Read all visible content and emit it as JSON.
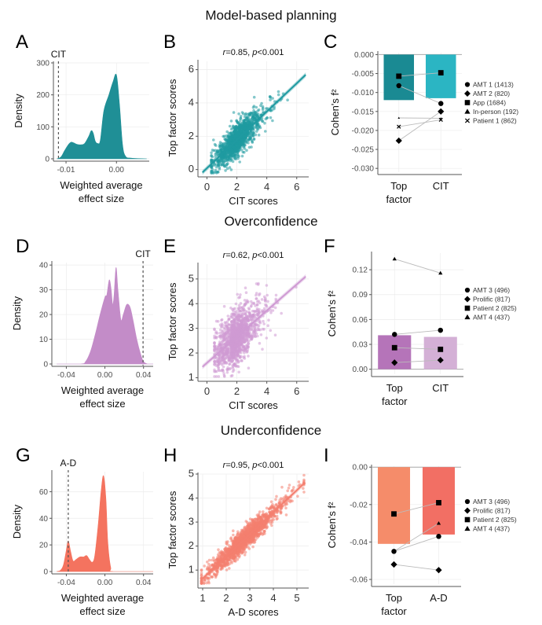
{
  "sections": [
    {
      "title": "Model-based planning"
    },
    {
      "title": "Overconfidence"
    },
    {
      "title": "Underconfidence"
    }
  ],
  "panel_letters": [
    "A",
    "B",
    "C",
    "D",
    "E",
    "F",
    "G",
    "H",
    "I"
  ],
  "chart_data": [
    {
      "id": "A",
      "type": "area",
      "title": "",
      "xlabel": "Weighted average effect size",
      "xlabel_lines": [
        "Weighted average",
        "effect size"
      ],
      "ylabel": "Density",
      "xlim": [
        -0.0125,
        0.0065
      ],
      "ylim": [
        0,
        300
      ],
      "xticks": [
        -0.01,
        0.0
      ],
      "xtick_labels": [
        "-0.01",
        "0.00"
      ],
      "yticks": [
        0,
        100,
        200,
        300
      ],
      "ytick_labels": [
        "0",
        "100",
        "200",
        "300"
      ],
      "fill": "#1f8f96",
      "density": [
        [
          -0.0118,
          0
        ],
        [
          -0.011,
          6
        ],
        [
          -0.0103,
          25
        ],
        [
          -0.0095,
          45
        ],
        [
          -0.009,
          52
        ],
        [
          -0.0085,
          50
        ],
        [
          -0.0078,
          45
        ],
        [
          -0.007,
          44
        ],
        [
          -0.0063,
          48
        ],
        [
          -0.0055,
          70
        ],
        [
          -0.005,
          88
        ],
        [
          -0.0046,
          80
        ],
        [
          -0.0042,
          55
        ],
        [
          -0.0037,
          48
        ],
        [
          -0.0032,
          58
        ],
        [
          -0.0025,
          150
        ],
        [
          -0.0015,
          200
        ],
        [
          -0.0007,
          240
        ],
        [
          0.0,
          262
        ],
        [
          0.0006,
          170
        ],
        [
          0.0012,
          45
        ],
        [
          0.0018,
          8
        ],
        [
          0.003,
          2
        ],
        [
          0.006,
          0
        ]
      ],
      "ref_line": {
        "x": -0.0115,
        "label": "CIT"
      },
      "grid": true
    },
    {
      "id": "B",
      "type": "scatter",
      "title": "r=0.85, p<0.001",
      "title_italic": [
        "r",
        "p"
      ],
      "xlabel": "CIT scores",
      "ylabel": "Top factor scores",
      "xlim": [
        -0.6,
        6.8
      ],
      "ylim": [
        -0.3,
        6.5
      ],
      "xticks": [
        0,
        2,
        4,
        6
      ],
      "yticks": [
        0,
        2,
        4,
        6
      ],
      "color": "#1f9aa1",
      "fit": {
        "slope": 0.85,
        "intercept": 0.08,
        "x0": -0.3,
        "x1": 6.6
      },
      "cloud": {
        "n": 1400,
        "xmean": 1.6,
        "xsd": 0.85,
        "xmin": 0.3,
        "xmax": 6.2,
        "resid_sd": 0.45,
        "seed": 11
      },
      "grid": true
    },
    {
      "id": "C",
      "type": "bar",
      "title": "",
      "xlabel": "",
      "ylabel": "Cohen's f²",
      "categories": [
        "Top factor",
        "CIT"
      ],
      "category_labels": [
        [
          "Top",
          "factor"
        ],
        [
          "CIT"
        ]
      ],
      "values": [
        -0.012,
        -0.0115
      ],
      "bar_colors": [
        "#1a8a93",
        "#2bb5c3"
      ],
      "ylim": [
        -0.031,
        0.0005
      ],
      "yticks": [
        0,
        -0.005,
        -0.01,
        -0.015,
        -0.02,
        -0.025,
        -0.03
      ],
      "ytick_labels": [
        "0.000",
        "-0.005",
        "-0.010",
        "-0.015",
        "-0.020",
        "-0.025",
        "-0.030"
      ],
      "series": [
        {
          "name": "AMT 1 (1413)",
          "shape": "circle",
          "values": [
            -0.0082,
            -0.0129
          ]
        },
        {
          "name": "AMT 2 (820)",
          "shape": "diamond",
          "values": [
            -0.0227,
            -0.015
          ]
        },
        {
          "name": "App (1684)",
          "shape": "square",
          "values": [
            -0.0057,
            -0.0048
          ]
        },
        {
          "name": "In-person (192)",
          "shape": "triangle",
          "values": [
            -0.0167,
            -0.0168
          ]
        },
        {
          "name": "Patient 1 (862)",
          "shape": "cross",
          "values": [
            -0.019,
            -0.0172
          ]
        }
      ],
      "legend": "right"
    },
    {
      "id": "D",
      "type": "area",
      "xlabel": "Weighted average effect size",
      "xlabel_lines": [
        "Weighted average",
        "effect size"
      ],
      "ylabel": "Density",
      "xlim": [
        -0.055,
        0.05
      ],
      "ylim": [
        0,
        41
      ],
      "xticks": [
        -0.04,
        0.0,
        0.04
      ],
      "xtick_labels": [
        "-0.04",
        "0.00",
        "0.04"
      ],
      "yticks": [
        0,
        10,
        20,
        30,
        40
      ],
      "ytick_labels": [
        "0",
        "10",
        "20",
        "30",
        "40"
      ],
      "fill": "#c38cc8",
      "density": [
        [
          -0.05,
          0
        ],
        [
          -0.025,
          0
        ],
        [
          -0.02,
          1
        ],
        [
          -0.015,
          5
        ],
        [
          -0.01,
          12
        ],
        [
          -0.005,
          20
        ],
        [
          0.0,
          27
        ],
        [
          0.002,
          28
        ],
        [
          0.0045,
          34
        ],
        [
          0.0065,
          30
        ],
        [
          0.008,
          24
        ],
        [
          0.0095,
          28
        ],
        [
          0.0115,
          39
        ],
        [
          0.0135,
          30
        ],
        [
          0.0165,
          18
        ],
        [
          0.019,
          20
        ],
        [
          0.0225,
          24
        ],
        [
          0.026,
          23
        ],
        [
          0.029,
          18
        ],
        [
          0.033,
          10
        ],
        [
          0.037,
          4
        ],
        [
          0.04,
          1
        ],
        [
          0.044,
          0
        ],
        [
          0.05,
          0
        ]
      ],
      "ref_line": {
        "x": 0.0395,
        "label": "CIT"
      },
      "grid": true
    },
    {
      "id": "E",
      "type": "scatter",
      "title": "r=0.62, p<0.001",
      "title_italic": [
        "r",
        "p"
      ],
      "xlabel": "CIT scores",
      "ylabel": "Top factor scores",
      "xlim": [
        -0.6,
        6.8
      ],
      "ylim": [
        0.95,
        5.6
      ],
      "xticks": [
        0,
        2,
        4,
        6
      ],
      "yticks": [
        1,
        2,
        3,
        4,
        5
      ],
      "color": "#cf9ad3",
      "fit": {
        "slope": 0.53,
        "intercept": 1.6,
        "x0": -0.3,
        "x1": 6.6
      },
      "cloud": {
        "n": 1400,
        "xmean": 1.6,
        "xsd": 0.8,
        "xmin": 0.5,
        "xmax": 6.5,
        "resid_sd": 0.55,
        "seed": 23
      },
      "grid": true
    },
    {
      "id": "F",
      "type": "bar",
      "ylabel": "Cohen's f²",
      "categories": [
        "Top factor",
        "CIT"
      ],
      "category_labels": [
        [
          "Top",
          "factor"
        ],
        [
          "CIT"
        ]
      ],
      "values": [
        0.041,
        0.039
      ],
      "bar_colors": [
        "#b574b9",
        "#d4b0d6"
      ],
      "ylim": [
        -0.006,
        0.14
      ],
      "yticks": [
        0,
        0.03,
        0.06,
        0.09,
        0.12
      ],
      "ytick_labels": [
        "0.00",
        "0.03",
        "0.06",
        "0.09",
        "0.12"
      ],
      "series": [
        {
          "name": "AMT 3 (496)",
          "shape": "circle",
          "values": [
            0.042,
            0.047
          ]
        },
        {
          "name": "Prolific (817)",
          "shape": "diamond",
          "values": [
            0.008,
            0.011
          ]
        },
        {
          "name": "Patient 2 (825)",
          "shape": "square",
          "values": [
            0.026,
            0.024
          ]
        },
        {
          "name": "AMT 4 (437)",
          "shape": "triangle",
          "values": [
            0.133,
            0.116
          ]
        }
      ],
      "legend": "right"
    },
    {
      "id": "G",
      "type": "area",
      "xlabel": "Weighted average effect size",
      "xlabel_lines": [
        "Weighted average",
        "effect size"
      ],
      "ylabel": "Density",
      "xlim": [
        -0.055,
        0.05
      ],
      "ylim": [
        0,
        75
      ],
      "xticks": [
        -0.04,
        0.0,
        0.04
      ],
      "xtick_labels": [
        "-0.04",
        "0.00",
        "0.04"
      ],
      "yticks": [
        0,
        20,
        40,
        60
      ],
      "ytick_labels": [
        "0",
        "20",
        "40",
        "60"
      ],
      "fill": "#f4735f",
      "density": [
        [
          -0.05,
          0
        ],
        [
          -0.046,
          1
        ],
        [
          -0.043,
          5
        ],
        [
          -0.04,
          16
        ],
        [
          -0.038,
          23
        ],
        [
          -0.0355,
          15
        ],
        [
          -0.033,
          8
        ],
        [
          -0.03,
          9
        ],
        [
          -0.026,
          11
        ],
        [
          -0.022,
          11
        ],
        [
          -0.019,
          12
        ],
        [
          -0.016,
          9
        ],
        [
          -0.013,
          7
        ],
        [
          -0.0105,
          12
        ],
        [
          -0.007,
          35
        ],
        [
          -0.004,
          60
        ],
        [
          -0.0015,
          72
        ],
        [
          0.001,
          55
        ],
        [
          0.003,
          22
        ],
        [
          0.006,
          3
        ],
        [
          0.009,
          0
        ],
        [
          0.05,
          0
        ]
      ],
      "ref_line": {
        "x": -0.038,
        "label": "A-D"
      },
      "grid": true
    },
    {
      "id": "H",
      "type": "scatter",
      "title": "r=0.95, p<0.001",
      "title_italic": [
        "r",
        "p"
      ],
      "xlabel": "A-D scores",
      "ylabel": "Top factor scores",
      "xlim": [
        0.8,
        5.5
      ],
      "ylim": [
        0.35,
        5.0
      ],
      "xticks": [
        1,
        2,
        3,
        4,
        5
      ],
      "yticks": [
        1,
        2,
        3,
        4,
        5
      ],
      "color": "#f47f6f",
      "fit": {
        "slope": 0.92,
        "intercept": -0.27,
        "x0": 0.95,
        "x1": 5.35
      },
      "cloud": {
        "n": 1600,
        "xmean": 2.3,
        "xsd": 0.85,
        "xmin": 0.95,
        "xmax": 5.3,
        "resid_sd": 0.22,
        "seed": 37
      },
      "grid": true
    },
    {
      "id": "I",
      "type": "bar",
      "ylabel": "Cohen's f²",
      "categories": [
        "Top factor",
        "A-D"
      ],
      "category_labels": [
        [
          "Top",
          "factor"
        ],
        [
          "A-D"
        ]
      ],
      "values": [
        -0.041,
        -0.036
      ],
      "bar_colors": [
        "#f58c6a",
        "#f26f64"
      ],
      "ylim": [
        -0.0625,
        0.0005
      ],
      "yticks": [
        0,
        -0.02,
        -0.04,
        -0.06
      ],
      "ytick_labels": [
        "0.00",
        "-0.02",
        "-0.04",
        "-0.06"
      ],
      "series": [
        {
          "name": "AMT 3 (496)",
          "shape": "circle",
          "values": [
            -0.045,
            -0.037
          ]
        },
        {
          "name": "Prolific (817)",
          "shape": "diamond",
          "values": [
            -0.052,
            -0.055
          ]
        },
        {
          "name": "Patient 2 (825)",
          "shape": "square",
          "values": [
            -0.025,
            -0.019
          ]
        },
        {
          "name": "AMT 4 (437)",
          "shape": "triangle",
          "values": [
            -0.045,
            -0.03
          ]
        }
      ],
      "legend": "right"
    }
  ]
}
